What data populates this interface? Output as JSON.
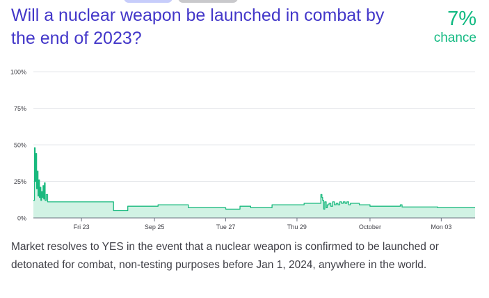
{
  "header": {
    "title": "Will a nuclear weapon be launched in combat by the end of 2023?",
    "probability": "7%",
    "probability_label": "chance"
  },
  "description": "Market resolves to YES in the event that a nuclear weapon is confirmed to be launched or detonated for combat, non-testing purposes before Jan 1, 2024, anywhere in the world.",
  "colors": {
    "title": "#4337c9",
    "accent": "#11b981",
    "area_fill": "#d1f2e4",
    "line": "#19b97e",
    "grid": "#e5e7eb",
    "tab_primary": "#c7cdfb",
    "tab_secondary": "#c9c9cc"
  },
  "chart_data": {
    "type": "area",
    "ylim": [
      0,
      100
    ],
    "y_ticks": [
      {
        "value": 0,
        "label": "0%"
      },
      {
        "value": 25,
        "label": "25%"
      },
      {
        "value": 50,
        "label": "50%"
      },
      {
        "value": 75,
        "label": "75%"
      },
      {
        "value": 100,
        "label": "100%"
      }
    ],
    "xlim": [
      0,
      12.4
    ],
    "x_ticks": [
      {
        "value": 1.35,
        "label": "Fri 23"
      },
      {
        "value": 3.4,
        "label": "Sep 25"
      },
      {
        "value": 5.4,
        "label": "Tue 27"
      },
      {
        "value": 7.4,
        "label": "Thu 29"
      },
      {
        "value": 9.45,
        "label": "October"
      },
      {
        "value": 11.45,
        "label": "Mon 03"
      }
    ],
    "grid": true,
    "series": [
      {
        "points": [
          [
            0.0,
            12
          ],
          [
            0.03,
            48
          ],
          [
            0.05,
            25
          ],
          [
            0.07,
            44
          ],
          [
            0.09,
            20
          ],
          [
            0.11,
            32
          ],
          [
            0.13,
            15
          ],
          [
            0.15,
            26
          ],
          [
            0.17,
            14
          ],
          [
            0.19,
            21
          ],
          [
            0.21,
            12
          ],
          [
            0.23,
            18
          ],
          [
            0.25,
            14
          ],
          [
            0.27,
            22
          ],
          [
            0.29,
            13
          ],
          [
            0.31,
            24
          ],
          [
            0.33,
            12
          ],
          [
            0.36,
            16
          ],
          [
            0.4,
            11
          ],
          [
            2.2,
            11
          ],
          [
            2.25,
            5
          ],
          [
            2.55,
            5
          ],
          [
            2.65,
            8
          ],
          [
            3.45,
            8
          ],
          [
            3.5,
            9
          ],
          [
            4.3,
            9
          ],
          [
            4.35,
            7
          ],
          [
            5.35,
            7
          ],
          [
            5.4,
            6
          ],
          [
            5.75,
            6
          ],
          [
            5.8,
            8
          ],
          [
            6.05,
            8
          ],
          [
            6.1,
            7
          ],
          [
            6.65,
            7
          ],
          [
            6.7,
            9
          ],
          [
            7.55,
            9
          ],
          [
            7.6,
            10
          ],
          [
            8.05,
            10
          ],
          [
            8.07,
            16
          ],
          [
            8.1,
            14
          ],
          [
            8.12,
            12
          ],
          [
            8.15,
            6
          ],
          [
            8.18,
            11
          ],
          [
            8.22,
            7
          ],
          [
            8.25,
            9
          ],
          [
            8.3,
            10
          ],
          [
            8.35,
            8
          ],
          [
            8.4,
            11
          ],
          [
            8.45,
            9
          ],
          [
            8.5,
            10
          ],
          [
            8.55,
            9
          ],
          [
            8.6,
            11
          ],
          [
            8.65,
            10
          ],
          [
            8.7,
            11
          ],
          [
            8.75,
            10
          ],
          [
            8.8,
            11
          ],
          [
            8.85,
            9
          ],
          [
            8.9,
            10
          ],
          [
            9.1,
            10
          ],
          [
            9.15,
            9
          ],
          [
            9.4,
            9
          ],
          [
            9.45,
            8
          ],
          [
            10.2,
            8
          ],
          [
            10.3,
            9
          ],
          [
            10.35,
            7.5
          ],
          [
            11.3,
            7.5
          ],
          [
            11.35,
            7
          ],
          [
            12.4,
            7
          ]
        ]
      }
    ]
  }
}
